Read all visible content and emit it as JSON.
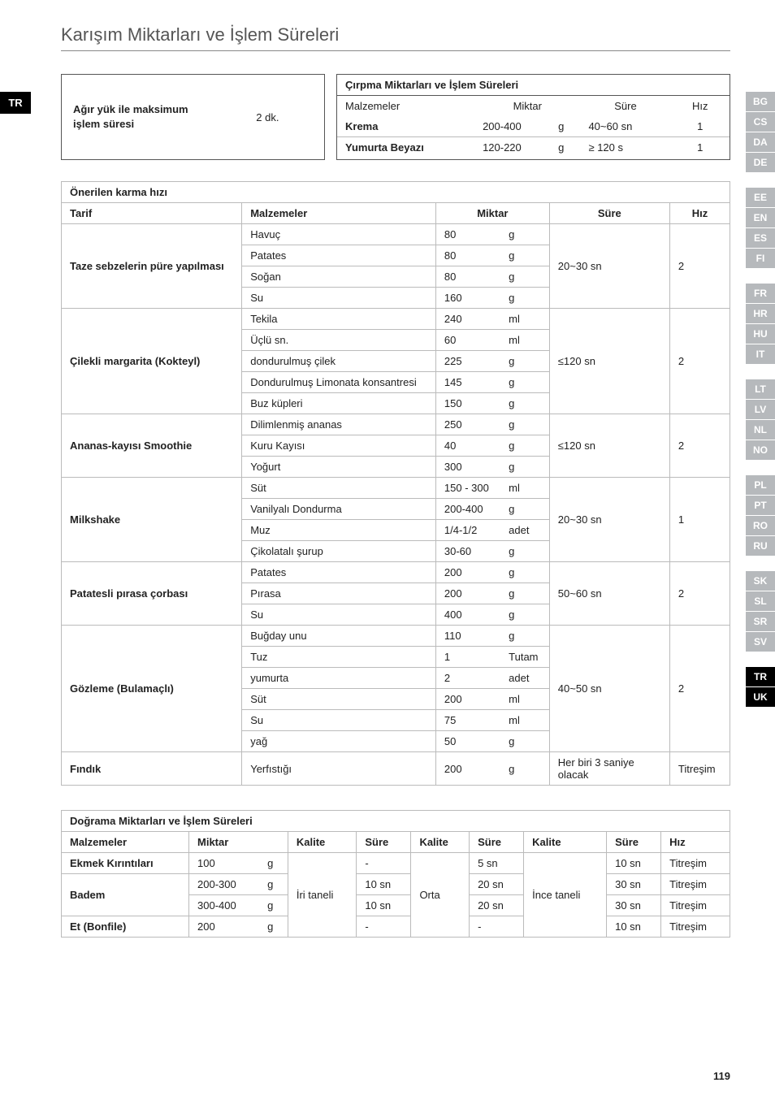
{
  "page_title": "Karışım Miktarları ve İşlem Süreleri",
  "page_number": "119",
  "side_left": "TR",
  "side_right_groups": [
    [
      "BG",
      "CS",
      "DA",
      "DE"
    ],
    [
      "EE",
      "EN",
      "ES",
      "FI"
    ],
    [
      "FR",
      "HR",
      "HU",
      "IT"
    ],
    [
      "LT",
      "LV",
      "NL",
      "NO"
    ],
    [
      "PL",
      "PT",
      "RO",
      "RU"
    ],
    [
      "SK",
      "SL",
      "SR",
      "SV"
    ]
  ],
  "side_right_active": [
    "TR",
    "UK"
  ],
  "top_left": {
    "label": "Ağır yük ile maksimum işlem süresi",
    "value": "2 dk."
  },
  "top_right": {
    "title": "Çırpma Miktarları ve İşlem Süreleri",
    "head": {
      "c1": "Malzemeler",
      "c2": "Miktar",
      "c3": "Süre",
      "c4": "Hız"
    },
    "rows": [
      {
        "name": "Krema",
        "qty": "200-400",
        "unit": "g",
        "time": "40~60 sn",
        "speed": "1"
      },
      {
        "name": "Yumurta Beyazı",
        "qty": "120-220",
        "unit": "g",
        "time": "≥ 120 s",
        "speed": "1"
      }
    ]
  },
  "main": {
    "title": "Önerilen karma hızı",
    "head": {
      "c1": "Tarif",
      "c2": "Malzemeler",
      "c3": "Miktar",
      "c4": "Süre",
      "c5": "Hız"
    },
    "groups": [
      {
        "recipe": "Taze sebzelerin püre yapılması",
        "time": "20~30 sn",
        "speed": "2",
        "rows": [
          {
            "name": "Havuç",
            "qty": "80",
            "unit": "g"
          },
          {
            "name": "Patates",
            "qty": "80",
            "unit": "g"
          },
          {
            "name": "Soğan",
            "qty": "80",
            "unit": "g"
          },
          {
            "name": "Su",
            "qty": "160",
            "unit": "g"
          }
        ]
      },
      {
        "recipe": "Çilekli margarita (Kokteyl)",
        "time": "≤120 sn",
        "speed": "2",
        "rows": [
          {
            "name": "Tekila",
            "qty": "240",
            "unit": "ml"
          },
          {
            "name": "Üçlü sn.",
            "qty": "60",
            "unit": "ml"
          },
          {
            "name": "dondurulmuş çilek",
            "qty": "225",
            "unit": "g"
          },
          {
            "name": "Dondurulmuş Limonata konsantresi",
            "qty": "145",
            "unit": "g"
          },
          {
            "name": "Buz küpleri",
            "qty": "150",
            "unit": "g"
          }
        ]
      },
      {
        "recipe": "Ananas-kayısı Smoothie",
        "time": "≤120 sn",
        "speed": "2",
        "rows": [
          {
            "name": "Dilimlenmiş ananas",
            "qty": "250",
            "unit": "g"
          },
          {
            "name": "Kuru Kayısı",
            "qty": "40",
            "unit": "g"
          },
          {
            "name": "Yoğurt",
            "qty": "300",
            "unit": "g"
          }
        ]
      },
      {
        "recipe": "Milkshake",
        "time": "20~30 sn",
        "speed": "1",
        "rows": [
          {
            "name": "Süt",
            "qty": "150 - 300",
            "unit": "ml"
          },
          {
            "name": "Vanilyalı Dondurma",
            "qty": "200-400",
            "unit": "g"
          },
          {
            "name": "Muz",
            "qty": "1/4-1/2",
            "unit": "adet"
          },
          {
            "name": "Çikolatalı şurup",
            "qty": "30-60",
            "unit": "g"
          }
        ]
      },
      {
        "recipe": "Patatesli pırasa çorbası",
        "time": "50~60 sn",
        "speed": "2",
        "rows": [
          {
            "name": "Patates",
            "qty": "200",
            "unit": "g"
          },
          {
            "name": "Pırasa",
            "qty": "200",
            "unit": "g"
          },
          {
            "name": "Su",
            "qty": "400",
            "unit": "g"
          }
        ]
      },
      {
        "recipe": "Gözleme (Bulamaçlı)",
        "time": "40~50 sn",
        "speed": "2",
        "rows": [
          {
            "name": "Buğday unu",
            "qty": "110",
            "unit": "g"
          },
          {
            "name": "Tuz",
            "qty": "1",
            "unit": "Tutam"
          },
          {
            "name": "yumurta",
            "qty": "2",
            "unit": "adet"
          },
          {
            "name": "Süt",
            "qty": "200",
            "unit": "ml"
          },
          {
            "name": "Su",
            "qty": "75",
            "unit": "ml"
          },
          {
            "name": "yağ",
            "qty": "50",
            "unit": "g"
          }
        ]
      }
    ],
    "last": {
      "recipe": "Fındık",
      "name": "Yerfıstığı",
      "qty": "200",
      "unit": "g",
      "time": "Her biri 3 saniye olacak",
      "speed": "Titreşim"
    }
  },
  "chop": {
    "title": "Doğrama Miktarları ve İşlem Süreleri",
    "head": [
      "Malzemeler",
      "Miktar",
      "Kalite",
      "Süre",
      "Kalite",
      "Süre",
      "Kalite",
      "Süre",
      "Hız"
    ],
    "kalite1": "İri taneli",
    "kalite2": "Orta",
    "kalite3": "İnce taneli",
    "rows": [
      {
        "name": "Ekmek Kırıntıları",
        "qty": "100",
        "unit": "g",
        "t1": "-",
        "t2": "5 sn",
        "t3": "10 sn",
        "speed": "Titreşim"
      },
      {
        "name_a": "Badem",
        "qty": "200-300",
        "unit": "g",
        "t1": "10 sn",
        "t2": "20 sn",
        "t3": "30 sn",
        "speed": "Titreşim"
      },
      {
        "name_b": "",
        "qty": "300-400",
        "unit": "g",
        "t1": "10 sn",
        "t2": "20 sn",
        "t3": "30 sn",
        "speed": "Titreşim"
      },
      {
        "name": "Et (Bonfile)",
        "qty": "200",
        "unit": "g",
        "t1": "-",
        "t2": "-",
        "t3": "10 sn",
        "speed": "Titreşim"
      }
    ]
  }
}
